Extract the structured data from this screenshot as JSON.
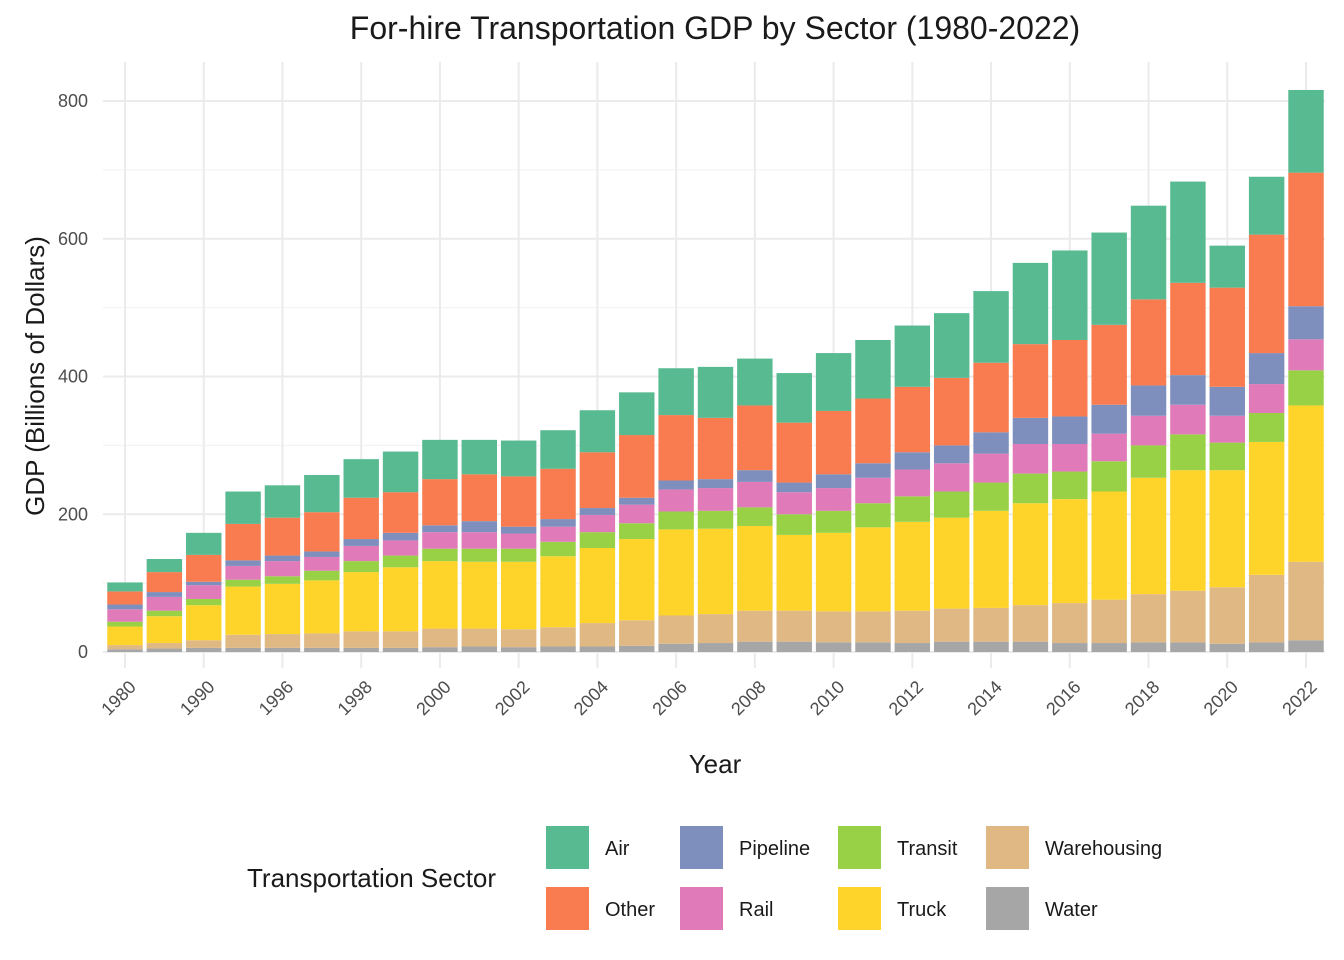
{
  "chart_data": {
    "type": "bar",
    "stacked": true,
    "title": "For-hire Transportation GDP by Sector (1980-2022)",
    "xlabel": "Year",
    "ylabel": "GDP (Billions of Dollars)",
    "ylim": [
      0,
      850
    ],
    "yticks": [
      0,
      200,
      400,
      600,
      800
    ],
    "grid": true,
    "legend_position": "bottom",
    "legend_title": "Transportation Sector",
    "categories": [
      "1980",
      "1985",
      "1990",
      "1995",
      "1996",
      "1997",
      "1998",
      "1999",
      "2000",
      "2001",
      "2002",
      "2003",
      "2004",
      "2005",
      "2006",
      "2007",
      "2008",
      "2009",
      "2010",
      "2011",
      "2012",
      "2013",
      "2014",
      "2015",
      "2016",
      "2017",
      "2018",
      "2019",
      "2020",
      "2021",
      "2022"
    ],
    "tick_labels": [
      "1980",
      "1990",
      "1996",
      "1998",
      "2000",
      "2002",
      "2004",
      "2006",
      "2008",
      "2010",
      "2012",
      "2014",
      "2016",
      "2018",
      "2020",
      "2022"
    ],
    "stack_order": [
      "Water",
      "Warehousing",
      "Truck",
      "Transit",
      "Rail",
      "Pipeline",
      "Other",
      "Air"
    ],
    "legend_order": [
      "Air",
      "Other",
      "Pipeline",
      "Rail",
      "Transit",
      "Truck",
      "Warehousing",
      "Water"
    ],
    "colors": {
      "Air": "#57BA91",
      "Other": "#F97C50",
      "Pipeline": "#7E8FBE",
      "Rail": "#E07AB8",
      "Transit": "#98D146",
      "Truck": "#FED42B",
      "Warehousing": "#DFB883",
      "Water": "#A6A6A6"
    },
    "series": [
      {
        "name": "Water",
        "values": [
          4,
          5,
          6,
          6,
          6,
          6,
          6,
          6,
          7,
          8,
          7,
          8,
          8,
          9,
          12,
          13,
          15,
          15,
          14,
          14,
          13,
          15,
          15,
          15,
          13,
          13,
          14,
          14,
          12,
          14,
          17
        ]
      },
      {
        "name": "Warehousing",
        "values": [
          6,
          8,
          11,
          19,
          20,
          21,
          24,
          24,
          27,
          26,
          26,
          28,
          34,
          37,
          41,
          42,
          45,
          45,
          45,
          45,
          47,
          48,
          49,
          53,
          58,
          63,
          70,
          75,
          82,
          98,
          114
        ]
      },
      {
        "name": "Truck",
        "values": [
          27,
          39,
          51,
          70,
          73,
          77,
          86,
          93,
          98,
          97,
          98,
          103,
          109,
          118,
          125,
          124,
          123,
          110,
          114,
          122,
          129,
          132,
          141,
          148,
          151,
          157,
          169,
          175,
          170,
          193,
          227
        ]
      },
      {
        "name": "Transit",
        "values": [
          7,
          8,
          9,
          10,
          11,
          14,
          16,
          17,
          18,
          19,
          19,
          21,
          23,
          23,
          26,
          26,
          27,
          30,
          32,
          35,
          37,
          38,
          41,
          43,
          40,
          44,
          47,
          52,
          40,
          42,
          51
        ]
      },
      {
        "name": "Rail",
        "values": [
          18,
          20,
          20,
          20,
          22,
          20,
          22,
          22,
          24,
          24,
          22,
          22,
          25,
          27,
          32,
          33,
          37,
          32,
          33,
          37,
          39,
          41,
          42,
          43,
          40,
          40,
          43,
          43,
          39,
          42,
          45
        ]
      },
      {
        "name": "Pipeline",
        "values": [
          7,
          7,
          5,
          8,
          8,
          8,
          10,
          11,
          10,
          16,
          10,
          11,
          10,
          10,
          13,
          13,
          17,
          14,
          20,
          21,
          25,
          26,
          31,
          38,
          40,
          42,
          44,
          43,
          42,
          45,
          48
        ]
      },
      {
        "name": "Other",
        "values": [
          19,
          29,
          39,
          53,
          55,
          57,
          60,
          59,
          67,
          68,
          73,
          73,
          81,
          91,
          95,
          89,
          94,
          87,
          92,
          94,
          95,
          98,
          101,
          107,
          111,
          116,
          125,
          134,
          144,
          172,
          194
        ]
      },
      {
        "name": "Air",
        "values": [
          13,
          19,
          32,
          47,
          47,
          54,
          56,
          59,
          57,
          50,
          52,
          56,
          61,
          62,
          68,
          74,
          68,
          72,
          84,
          85,
          89,
          94,
          104,
          118,
          130,
          134,
          136,
          147,
          61,
          84,
          120
        ]
      }
    ]
  }
}
